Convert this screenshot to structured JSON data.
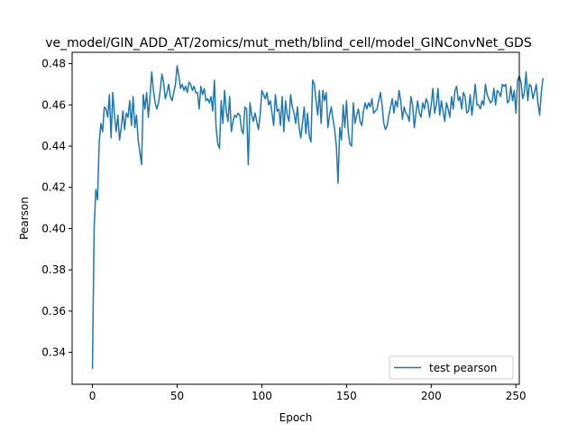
{
  "chart_data": {
    "type": "line",
    "title": "ve_model/GIN_ADD_AT/2omics/mut_meth/blind_cell/model_GINConvNet_GDS",
    "xlabel": "Epoch",
    "ylabel": "Pearson",
    "xlim": [
      -12,
      252
    ],
    "ylim": [
      0.3245,
      0.4855
    ],
    "x_ticks": [
      0,
      50,
      100,
      150,
      200,
      250
    ],
    "y_ticks": [
      0.34,
      0.36,
      0.38,
      0.4,
      0.42,
      0.44,
      0.46,
      0.48
    ],
    "x_tick_labels": [
      "0",
      "50",
      "100",
      "150",
      "200",
      "250"
    ],
    "y_tick_labels": [
      "0.34",
      "0.36",
      "0.38",
      "0.40",
      "0.42",
      "0.44",
      "0.46",
      "0.48"
    ],
    "grid": false,
    "legend_position": "lower-right",
    "series": [
      {
        "name": "test pearson",
        "color": "#1f77b4",
        "values": [
          0.332,
          0.4,
          0.419,
          0.414,
          0.442,
          0.451,
          0.447,
          0.459,
          0.458,
          0.454,
          0.465,
          0.444,
          0.466,
          0.455,
          0.447,
          0.455,
          0.443,
          0.449,
          0.457,
          0.448,
          0.456,
          0.454,
          0.462,
          0.45,
          0.464,
          0.449,
          0.455,
          0.443,
          0.437,
          0.431,
          0.465,
          0.458,
          0.466,
          0.454,
          0.464,
          0.476,
          0.467,
          0.461,
          0.458,
          0.461,
          0.467,
          0.475,
          0.471,
          0.463,
          0.466,
          0.47,
          0.464,
          0.462,
          0.466,
          0.47,
          0.479,
          0.474,
          0.468,
          0.47,
          0.467,
          0.469,
          0.466,
          0.471,
          0.47,
          0.467,
          0.469,
          0.466,
          0.466,
          0.458,
          0.469,
          0.465,
          0.468,
          0.462,
          0.463,
          0.461,
          0.464,
          0.457,
          0.472,
          0.449,
          0.441,
          0.439,
          0.462,
          0.451,
          0.467,
          0.457,
          0.452,
          0.464,
          0.447,
          0.452,
          0.455,
          0.454,
          0.456,
          0.455,
          0.448,
          0.446,
          0.459,
          0.458,
          0.431,
          0.461,
          0.455,
          0.452,
          0.456,
          0.452,
          0.448,
          0.455,
          0.467,
          0.465,
          0.463,
          0.466,
          0.46,
          0.462,
          0.456,
          0.45,
          0.465,
          0.457,
          0.458,
          0.45,
          0.464,
          0.447,
          0.462,
          0.455,
          0.452,
          0.465,
          0.459,
          0.456,
          0.451,
          0.459,
          0.449,
          0.444,
          0.451,
          0.459,
          0.446,
          0.456,
          0.445,
          0.442,
          0.472,
          0.47,
          0.462,
          0.455,
          0.467,
          0.451,
          0.467,
          0.462,
          0.466,
          0.449,
          0.455,
          0.459,
          0.453,
          0.448,
          0.44,
          0.422,
          0.449,
          0.443,
          0.46,
          0.449,
          0.462,
          0.447,
          0.441,
          0.44,
          0.461,
          0.451,
          0.455,
          0.458,
          0.452,
          0.45,
          0.457,
          0.461,
          0.458,
          0.461,
          0.459,
          0.463,
          0.456,
          0.457,
          0.458,
          0.462,
          0.466,
          0.46,
          0.451,
          0.448,
          0.45,
          0.455,
          0.459,
          0.463,
          0.456,
          0.462,
          0.459,
          0.467,
          0.462,
          0.453,
          0.459,
          0.456,
          0.455,
          0.452,
          0.464,
          0.46,
          0.449,
          0.456,
          0.462,
          0.456,
          0.454,
          0.461,
          0.458,
          0.463,
          0.461,
          0.454,
          0.46,
          0.468,
          0.456,
          0.46,
          0.468,
          0.455,
          0.462,
          0.457,
          0.452,
          0.461,
          0.458,
          0.454,
          0.464,
          0.458,
          0.467,
          0.469,
          0.462,
          0.464,
          0.458,
          0.466,
          0.464,
          0.456,
          0.457,
          0.465,
          0.455,
          0.462,
          0.47,
          0.46,
          0.46,
          0.458,
          0.462,
          0.46,
          0.47,
          0.465,
          0.463,
          0.461,
          0.462,
          0.468,
          0.46,
          0.467,
          0.466,
          0.464,
          0.47,
          0.469,
          0.47,
          0.461,
          0.462,
          0.469,
          0.462,
          0.467,
          0.456,
          0.472,
          0.474,
          0.471,
          0.463,
          0.466,
          0.476,
          0.462,
          0.47,
          0.469,
          0.463,
          0.466,
          0.47,
          0.461,
          0.455,
          0.466,
          0.473
        ]
      }
    ]
  }
}
